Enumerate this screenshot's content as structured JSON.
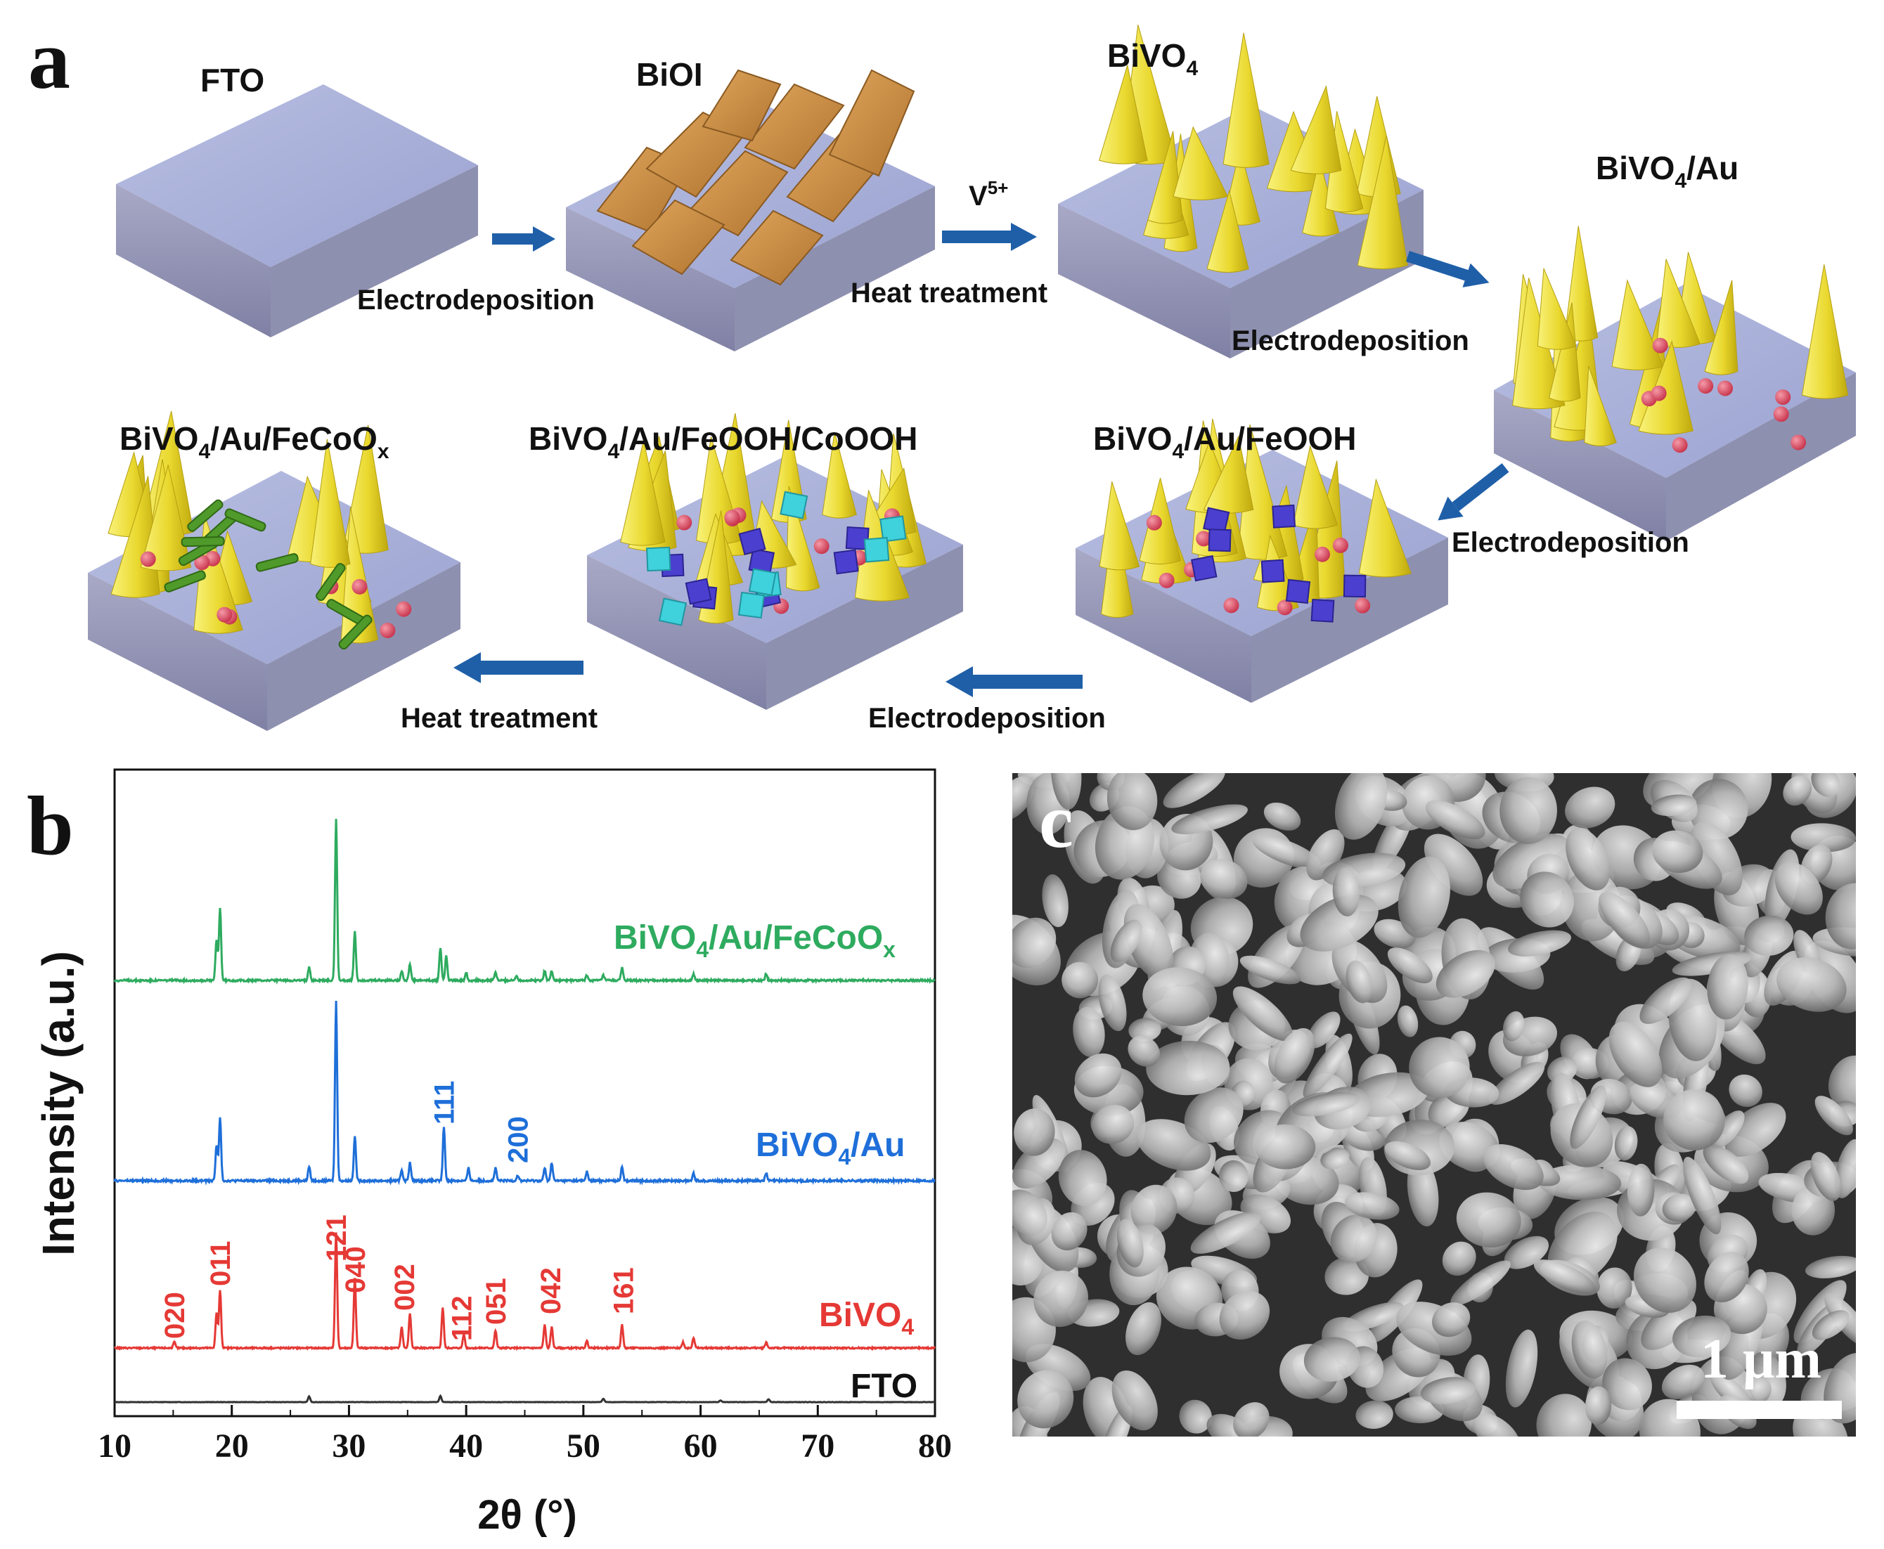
{
  "panel_a": {
    "label": "a",
    "stages": [
      {
        "name": "FTO"
      },
      {
        "name": "BiOI"
      },
      {
        "name": "BiVO",
        "sub": "4"
      },
      {
        "name": "BiVO",
        "sub": "4",
        "tail": "/Au"
      },
      {
        "name": "BiVO",
        "sub": "4",
        "tail": "/Au/FeOOH"
      },
      {
        "name": "BiVO",
        "sub": "4",
        "tail": "/Au/FeOOH/CoOOH"
      },
      {
        "name": "BiVO",
        "sub": "4",
        "tail": "/Au/FeCoO",
        "sub2": "x"
      }
    ],
    "steps": {
      "s1": "Electrodeposition",
      "s2": "Heat treatment",
      "s2_reagent": "V",
      "s2_reagent_sup": "5+",
      "s3": "Electrodeposition",
      "s4": "Electrodeposition",
      "s5": "Electrodeposition",
      "s6": "Heat treatment"
    },
    "colors": {
      "substrate_top": "#a9b0d6",
      "substrate_side": "#9093b6",
      "cone": "#ecdf35",
      "sheet": "#c98a3c",
      "au": "#d64a5e",
      "feooh": "#4b3fd0",
      "cooh": "#3fd1dc",
      "fecoox": "#4f9a2a",
      "arrow": "#1f5fa8"
    }
  },
  "panel_b": {
    "label": "b",
    "chart_data": {
      "type": "line",
      "xlabel": "2θ (°)",
      "ylabel": "Intensity (a.u.)",
      "xlim": [
        10,
        80
      ],
      "xticks": [
        10,
        20,
        30,
        40,
        50,
        60,
        70,
        80
      ],
      "grid": false,
      "series": [
        {
          "name": "FTO",
          "color": "#333333",
          "peaks": [
            [
              26.6,
              0.2
            ],
            [
              37.8,
              0.22
            ],
            [
              51.7,
              0.12
            ],
            [
              61.7,
              0.06
            ],
            [
              65.8,
              0.1
            ]
          ]
        },
        {
          "name": "BiVO4",
          "color": "#e53935",
          "peaks": [
            [
              15.1,
              0.05
            ],
            [
              18.7,
              0.3
            ],
            [
              19.0,
              0.5
            ],
            [
              28.9,
              1.0
            ],
            [
              30.5,
              0.6
            ],
            [
              34.5,
              0.18
            ],
            [
              35.2,
              0.3
            ],
            [
              38.0,
              0.35
            ],
            [
              39.8,
              0.12
            ],
            [
              42.5,
              0.15
            ],
            [
              46.7,
              0.2
            ],
            [
              47.3,
              0.18
            ],
            [
              50.3,
              0.06
            ],
            [
              53.3,
              0.2
            ],
            [
              58.5,
              0.05
            ],
            [
              59.4,
              0.09
            ],
            [
              65.6,
              0.05
            ]
          ]
        },
        {
          "name": "BiVO4/Au",
          "color": "#1e6fd9",
          "peaks": [
            [
              18.7,
              0.2
            ],
            [
              19.0,
              0.35
            ],
            [
              26.6,
              0.08
            ],
            [
              28.9,
              1.0
            ],
            [
              30.5,
              0.25
            ],
            [
              34.5,
              0.06
            ],
            [
              35.2,
              0.1
            ],
            [
              38.1,
              0.3
            ],
            [
              40.2,
              0.07
            ],
            [
              42.5,
              0.07
            ],
            [
              44.4,
              0.03
            ],
            [
              46.7,
              0.07
            ],
            [
              47.3,
              0.1
            ],
            [
              50.3,
              0.05
            ],
            [
              53.3,
              0.08
            ],
            [
              59.4,
              0.04
            ],
            [
              65.6,
              0.04
            ]
          ]
        },
        {
          "name": "BiVO4/Au/FeCoOx",
          "color": "#2eab5f",
          "peaks": [
            [
              18.7,
              0.25
            ],
            [
              19.0,
              0.45
            ],
            [
              26.6,
              0.08
            ],
            [
              28.9,
              1.0
            ],
            [
              30.5,
              0.3
            ],
            [
              34.5,
              0.06
            ],
            [
              35.2,
              0.1
            ],
            [
              37.8,
              0.2
            ],
            [
              38.3,
              0.15
            ],
            [
              40.0,
              0.05
            ],
            [
              42.5,
              0.05
            ],
            [
              44.3,
              0.03
            ],
            [
              46.7,
              0.06
            ],
            [
              47.3,
              0.06
            ],
            [
              50.3,
              0.03
            ],
            [
              51.7,
              0.03
            ],
            [
              53.3,
              0.08
            ],
            [
              59.4,
              0.04
            ],
            [
              65.6,
              0.04
            ]
          ]
        }
      ],
      "legend": {
        "fto": "FTO",
        "bivo4": {
          "main": "BiVO",
          "sub": "4"
        },
        "bivo4_au": {
          "main": "BiVO",
          "sub": "4",
          "tail": "/Au"
        },
        "bivo4_au_fecoox": {
          "main": "BiVO",
          "sub": "4",
          "tail": "/Au/FeCoO",
          "sub2": "x"
        }
      },
      "annotations_bivo4": [
        {
          "text": "020",
          "x": 15.1
        },
        {
          "text": "011",
          "x": 19.0
        },
        {
          "text": "121",
          "x": 28.9
        },
        {
          "text": "040",
          "x": 30.5
        },
        {
          "text": "002",
          "x": 34.7
        },
        {
          "text": "112",
          "bar": "1",
          "x": 39.6
        },
        {
          "text": "051",
          "x": 42.5
        },
        {
          "text": "042",
          "x": 47.2
        },
        {
          "text": "161",
          "x": 53.4
        }
      ],
      "annotations_au": [
        {
          "text": "111",
          "x": 38.1
        },
        {
          "text": "200",
          "x": 44.4
        }
      ]
    }
  },
  "panel_c": {
    "label": "c",
    "scale_bar": "1 μm"
  }
}
